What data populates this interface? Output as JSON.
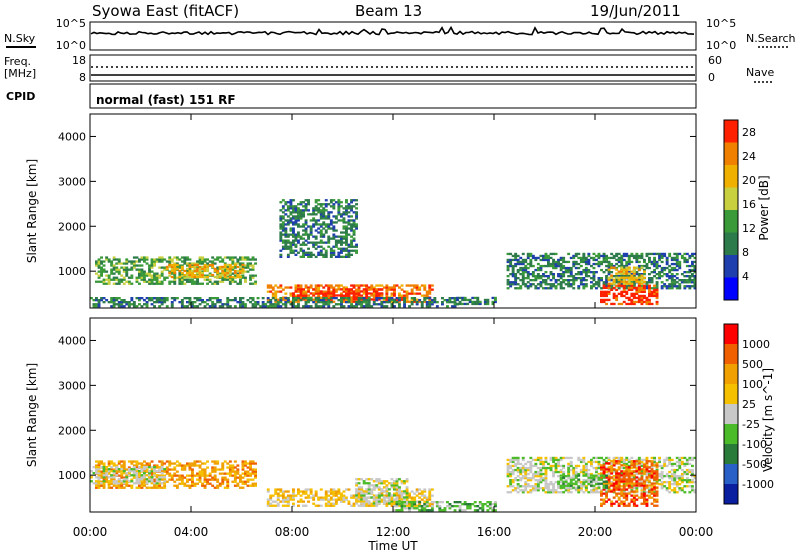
{
  "header": {
    "station": "Syowa East (fitACF)",
    "beam": "Beam 13",
    "date": "19/Jun/2011"
  },
  "strips": {
    "nsky_label": "N.Sky",
    "nsky_ticks": [
      "10^5",
      "10^0"
    ],
    "nsearch_label": "N.Search",
    "nsearch_ticks": [
      "10^5",
      "10^0"
    ],
    "freq_label": "Freq.",
    "freq_unit": "[MHz]",
    "freq_ticks": [
      "18",
      "8"
    ],
    "nave_label": "Nave",
    "nave_ticks": [
      "60",
      "0"
    ],
    "cpid_label": "CPID",
    "cpid_value": "normal (fast) 151 RF"
  },
  "colors": {
    "power_scale": [
      "#0000ff",
      "#1f3fae",
      "#2d7a4a",
      "#3a9a3a",
      "#c8d040",
      "#f0b000",
      "#f08000",
      "#ff2000"
    ],
    "velocity_scale": [
      "#0a1ea0",
      "#2860c8",
      "#2a7a3a",
      "#4cbb2a",
      "#c8c8c8",
      "#f5c000",
      "#f0a000",
      "#f06000",
      "#ff0000"
    ]
  },
  "chart_data": [
    {
      "type": "heatmap",
      "title": "Power",
      "ylabel": "Slant Range [km]",
      "xlabel": "Time UT",
      "x_ticks": [
        "00:00",
        "04:00",
        "08:00",
        "12:00",
        "16:00",
        "20:00",
        "00:00"
      ],
      "y_ticks": [
        "1000",
        "2000",
        "3000",
        "4000"
      ],
      "xlim_hours": [
        0,
        24
      ],
      "ylim_km": [
        180,
        4500
      ],
      "colorbar_label": "Power [dB]",
      "colorbar_ticks": [
        "4",
        "8",
        "12",
        "16",
        "20",
        "24",
        "28"
      ],
      "colorbar_range": [
        0,
        30
      ],
      "echo_regions": [
        {
          "t0": 0.2,
          "t1": 6.5,
          "r0": 700,
          "r1": 1300,
          "level": 3
        },
        {
          "t0": 3.0,
          "t1": 6.0,
          "r0": 850,
          "r1": 1150,
          "level": 5
        },
        {
          "t0": 7.0,
          "t1": 13.5,
          "r0": 300,
          "r1": 700,
          "level": 6
        },
        {
          "t0": 8.0,
          "t1": 11.5,
          "r0": 350,
          "r1": 600,
          "level": 7
        },
        {
          "t0": 0.0,
          "t1": 14.5,
          "r0": 200,
          "r1": 420,
          "level": 2
        },
        {
          "t0": 14.5,
          "t1": 16.0,
          "r0": 250,
          "r1": 400,
          "level": 2
        },
        {
          "t0": 16.5,
          "t1": 24.0,
          "r0": 600,
          "r1": 1400,
          "level": 2
        },
        {
          "t0": 20.2,
          "t1": 22.5,
          "r0": 250,
          "r1": 700,
          "level": 7
        },
        {
          "t0": 20.5,
          "t1": 22.0,
          "r0": 700,
          "r1": 1100,
          "level": 5
        },
        {
          "t0": 7.5,
          "t1": 10.5,
          "r0": 1300,
          "r1": 2600,
          "level": 2
        }
      ]
    },
    {
      "type": "heatmap",
      "title": "Velocity",
      "ylabel": "Slant Range [km]",
      "xlabel": "Time UT",
      "x_ticks": [
        "00:00",
        "04:00",
        "08:00",
        "12:00",
        "16:00",
        "20:00",
        "00:00"
      ],
      "y_ticks": [
        "1000",
        "2000",
        "3000",
        "4000"
      ],
      "xlim_hours": [
        0,
        24
      ],
      "ylim_km": [
        180,
        4500
      ],
      "colorbar_label": "Velocity [m s^-1]",
      "colorbar_ticks": [
        "1000",
        "500",
        "100",
        "25",
        "-25",
        "-100",
        "-500",
        "-1000"
      ],
      "echo_regions": [
        {
          "t0": 0.2,
          "t1": 6.5,
          "r0": 700,
          "r1": 1300,
          "level": 6
        },
        {
          "t0": 0.0,
          "t1": 3.0,
          "r0": 800,
          "r1": 1200,
          "level": 4
        },
        {
          "t0": 7.0,
          "t1": 13.5,
          "r0": 300,
          "r1": 700,
          "level": 5
        },
        {
          "t0": 10.5,
          "t1": 12.5,
          "r0": 350,
          "r1": 900,
          "level": 4
        },
        {
          "t0": 12.0,
          "t1": 16.0,
          "r0": 200,
          "r1": 420,
          "level": 3
        },
        {
          "t0": 16.5,
          "t1": 24.0,
          "r0": 600,
          "r1": 1400,
          "level": 4
        },
        {
          "t0": 20.2,
          "t1": 22.5,
          "r0": 300,
          "r1": 1300,
          "level": 7
        },
        {
          "t0": 18.5,
          "t1": 20.5,
          "r0": 700,
          "r1": 1000,
          "level": 3
        }
      ]
    }
  ]
}
